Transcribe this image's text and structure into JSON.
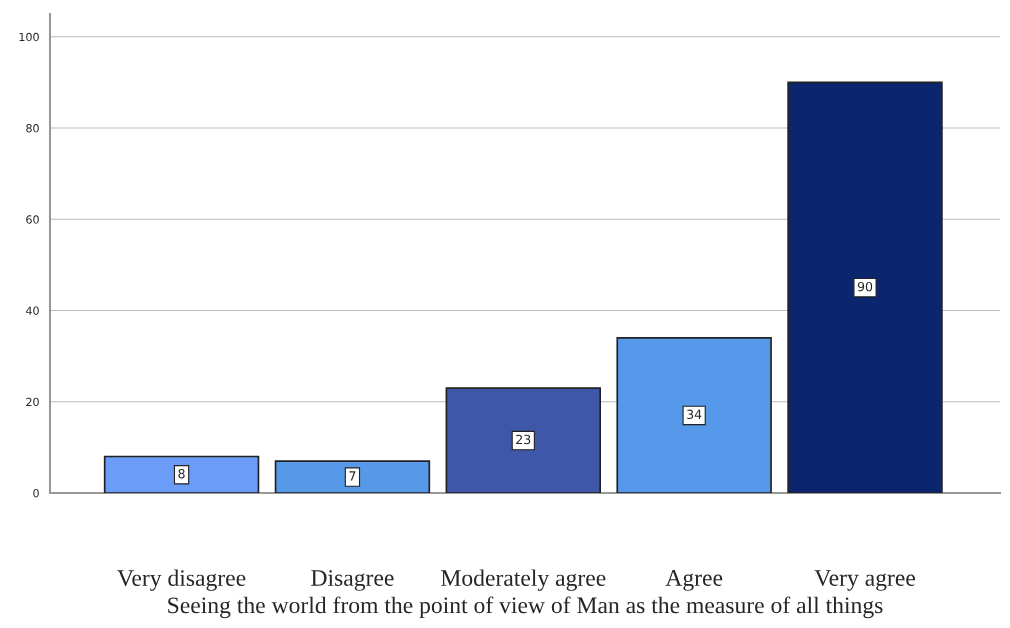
{
  "chart_data": {
    "type": "bar",
    "xlabel": "Seeing the world from the point of view of Man as the measure of all things",
    "categories": [
      "Very disagree",
      "Disagree",
      "Moderately agree",
      "Agree",
      "Very agree"
    ],
    "values": [
      8,
      7,
      23,
      34,
      90
    ],
    "colors": [
      "#6b9cf8",
      "#5699e8",
      "#3e57a9",
      "#5699ea",
      "#0b256f"
    ],
    "ylim": [
      0,
      105
    ],
    "yticks": [
      0,
      20,
      40,
      60,
      80,
      100
    ],
    "grid": "y",
    "data_labels": true
  }
}
